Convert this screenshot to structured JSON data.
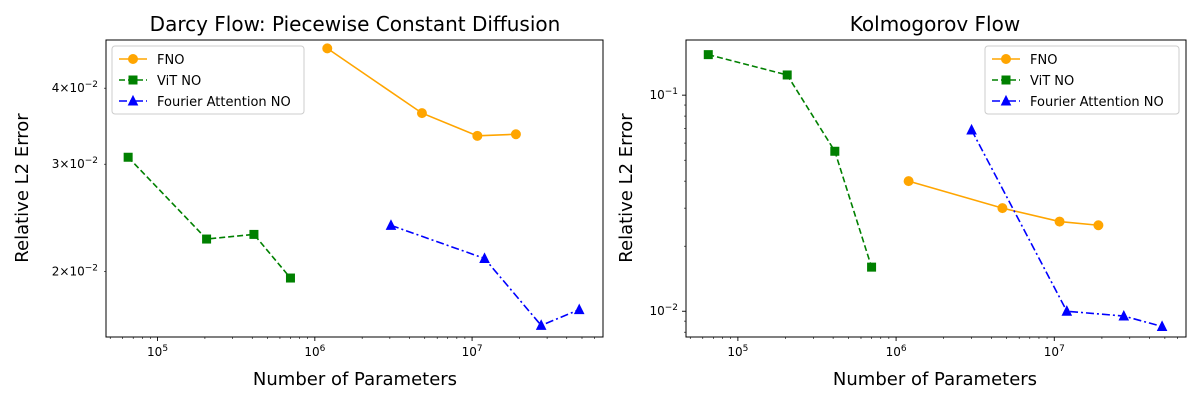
{
  "chart_data": [
    {
      "type": "line",
      "title": "Darcy Flow: Piecewise Constant Diffusion",
      "xlabel": "Number of Parameters",
      "ylabel": "Relative L2 Error",
      "xscale": "log",
      "yscale": "log",
      "xlim": [
        47000,
        68000000
      ],
      "ylim": [
        0.0156,
        0.048
      ],
      "xticks": [
        {
          "value": 100000,
          "base": "10",
          "exp": "5"
        },
        {
          "value": 1000000,
          "base": "10",
          "exp": "6"
        },
        {
          "value": 10000000,
          "base": "10",
          "exp": "7"
        }
      ],
      "yticks": [
        {
          "value": 0.02,
          "mant": "2",
          "exp": "−2"
        },
        {
          "value": 0.03,
          "mant": "3",
          "exp": "−2"
        },
        {
          "value": 0.04,
          "mant": "4",
          "exp": "−2"
        }
      ],
      "legend_loc": "top-left",
      "series": [
        {
          "name": "FNO",
          "color": "#ffa500",
          "marker": "circle",
          "dash": "solid",
          "x": [
            1200000,
            4800000,
            10800000,
            19000000
          ],
          "y": [
            0.0465,
            0.0364,
            0.0334,
            0.0336
          ]
        },
        {
          "name": "ViT NO",
          "color": "#008000",
          "marker": "square",
          "dash": "dashed",
          "x": [
            65000,
            205000,
            410000,
            700000
          ],
          "y": [
            0.0308,
            0.0226,
            0.023,
            0.0195
          ]
        },
        {
          "name": "Fourier Attention NO",
          "color": "#0000ff",
          "marker": "triangle",
          "dash": "dashdot",
          "x": [
            3050000,
            12000000,
            27500000,
            48000000
          ],
          "y": [
            0.0238,
            0.021,
            0.0163,
            0.0173
          ]
        }
      ]
    },
    {
      "type": "line",
      "title": "Kolmogorov Flow",
      "xlabel": "Number of Parameters",
      "ylabel": "Relative L2 Error",
      "xscale": "log",
      "yscale": "log",
      "xlim": [
        47000,
        68000000
      ],
      "ylim": [
        0.0076,
        0.18
      ],
      "xticks": [
        {
          "value": 100000,
          "base": "10",
          "exp": "5"
        },
        {
          "value": 1000000,
          "base": "10",
          "exp": "6"
        },
        {
          "value": 10000000,
          "base": "10",
          "exp": "7"
        }
      ],
      "yticks": [
        {
          "value": 0.01,
          "mant": "",
          "exp": "−2"
        },
        {
          "value": 0.1,
          "mant": "",
          "exp": "−1"
        }
      ],
      "legend_loc": "top-right",
      "series": [
        {
          "name": "FNO",
          "color": "#ffa500",
          "marker": "circle",
          "dash": "solid",
          "x": [
            1200000,
            4700000,
            10800000,
            19000000
          ],
          "y": [
            0.04,
            0.03,
            0.026,
            0.025
          ]
        },
        {
          "name": "ViT NO",
          "color": "#008000",
          "marker": "square",
          "dash": "dashed",
          "x": [
            65000,
            205000,
            410000,
            700000
          ],
          "y": [
            0.154,
            0.124,
            0.055,
            0.016
          ]
        },
        {
          "name": "Fourier Attention NO",
          "color": "#0000ff",
          "marker": "triangle",
          "dash": "dashdot",
          "x": [
            3000000,
            12000000,
            27500000,
            48000000
          ],
          "y": [
            0.069,
            0.01,
            0.0095,
            0.0085
          ]
        }
      ]
    }
  ]
}
